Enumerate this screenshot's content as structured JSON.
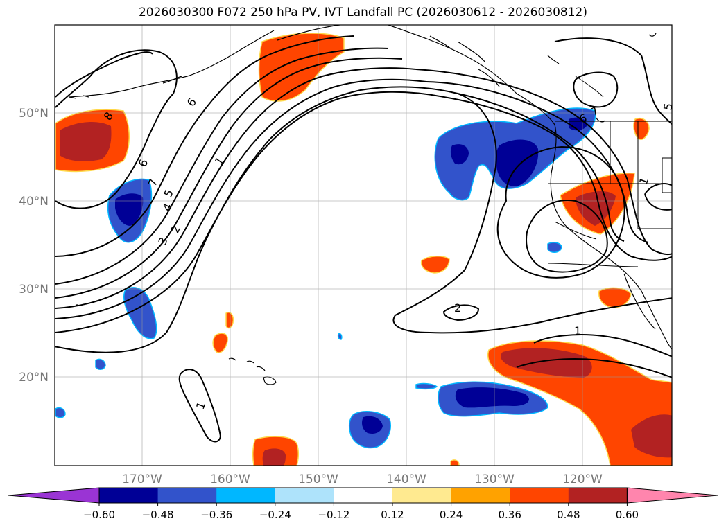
{
  "title": "2026030300 F072 250 hPa PV, IVT Landfall PC (2026030612 - 2026030812)",
  "lat_labels": [
    "50°N",
    "40°N",
    "30°N",
    "20°N"
  ],
  "lon_labels": [
    "170°W",
    "160°W",
    "150°W",
    "140°W",
    "130°W",
    "120°W"
  ],
  "contour_labels": [
    "8",
    "7",
    "6",
    "5",
    "4",
    "3",
    "2",
    "1",
    "6",
    "1",
    "2",
    "1",
    "6",
    "7",
    "5",
    "1"
  ],
  "colorbar": {
    "ticks": [
      "−0.60",
      "−0.48",
      "−0.36",
      "−0.24",
      "−0.12",
      "0.12",
      "0.24",
      "0.36",
      "0.48",
      "0.60"
    ],
    "colors": [
      "#9a34d4",
      "#000096",
      "#3253cb",
      "#00b7ff",
      "#aee3fb",
      "#ffffff",
      "#ffea90",
      "#ffa200",
      "#ff4500",
      "#b22222",
      "#ff85ad"
    ]
  },
  "fill_colors": {
    "orange": "#ff4500",
    "darkred": "#b22222",
    "blue": "#3253cb",
    "navy": "#000096",
    "cyan": "#00b7ff",
    "yellow": "#ffd84a"
  }
}
